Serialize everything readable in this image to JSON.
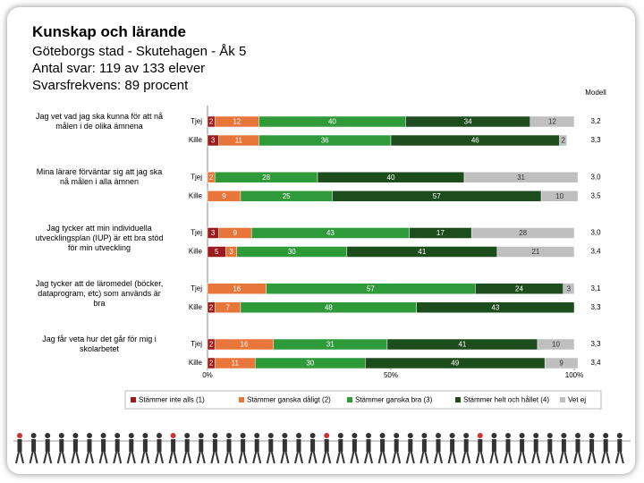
{
  "header": {
    "title": "Kunskap och lärande",
    "lines": [
      "Göteborgs stad - Skutehagen - Åk 5",
      "Antal svar: 119 av 133 elever",
      "Svarsfrekvens: 89 procent"
    ]
  },
  "chart_data": {
    "type": "bar",
    "orientation": "horizontal",
    "stacked": true,
    "questions": [
      "Jag vet vad jag ska kunna för att nå målen i de olika ämnena",
      "Mina lärare förväntar sig att jag ska nå målen i alla ämnen",
      "Jag tycker att min individuella utvecklingsplan (IUP) är ett bra stöd för min utveckling",
      "Jag tycker att de läromedel (böcker, dataprogram, etc) som används är bra",
      "Jag får veta hur det går för mig i skolarbetet"
    ],
    "groups": [
      "Tjej",
      "Kille"
    ],
    "series": [
      {
        "name": "Stämmer inte alls (1)",
        "color": "#9b1c1c",
        "values": [
          2,
          3,
          null,
          null,
          3,
          5,
          null,
          2,
          2,
          2
        ]
      },
      {
        "name": "Stämmer ganska dåligt (2)",
        "color": "#e8763a",
        "values": [
          12,
          11,
          2,
          9,
          9,
          3,
          16,
          7,
          16,
          11
        ]
      },
      {
        "name": "Stämmer ganska bra (3)",
        "color": "#2e9a3a",
        "values": [
          40,
          36,
          28,
          25,
          43,
          30,
          57,
          48,
          31,
          30
        ]
      },
      {
        "name": "Stämmer helt och hållet (4)",
        "color": "#1d4d1d",
        "values": [
          34,
          46,
          40,
          57,
          17,
          41,
          24,
          43,
          41,
          49
        ]
      },
      {
        "name": "Vet ej",
        "color": "#bfbfbf",
        "values": [
          12,
          2,
          31,
          10,
          28,
          21,
          3,
          null,
          10,
          9
        ]
      }
    ],
    "model": {
      "title": "Modell",
      "values": [
        3.2,
        3.3,
        3.0,
        3.5,
        3.0,
        3.4,
        3.1,
        3.3,
        3.3,
        3.4
      ],
      "value_labels": [
        "3,2",
        "3,3",
        "3,0",
        "3,5",
        "3,0",
        "3,4",
        "3,1",
        "3,3",
        "3,3",
        "3,4"
      ]
    },
    "xlim": [
      0,
      100
    ],
    "xticks": [
      {
        "value": 0,
        "label": "0%"
      },
      {
        "value": 50,
        "label": "50%"
      },
      {
        "value": 100,
        "label": "100%"
      }
    ]
  }
}
